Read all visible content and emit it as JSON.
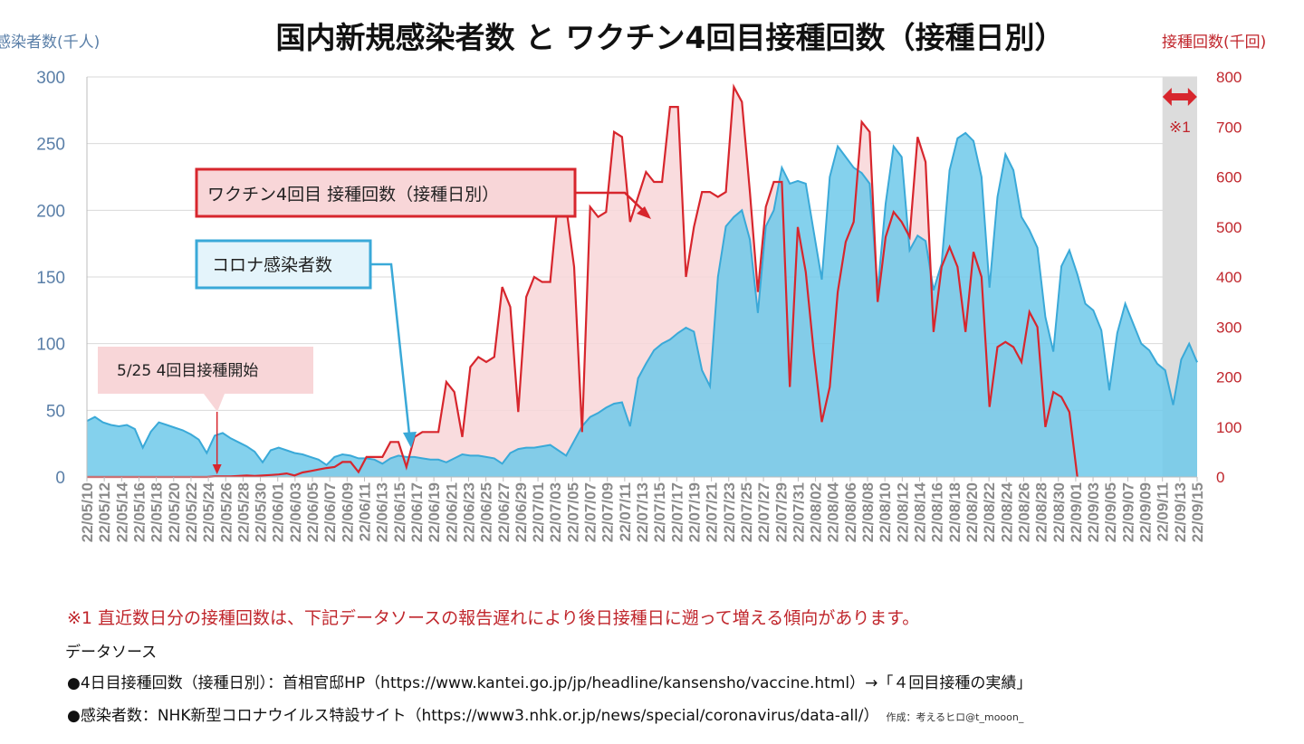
{
  "header": {
    "title": "国内新規感染者数 と ワクチン4回目接種回数（接種日別）",
    "left_axis_unit": "感染者数(千人)",
    "right_axis_unit": "接種回数(千回)"
  },
  "annotations": {
    "vaccine_label": "ワクチン4回目 接種回数（接種日別）",
    "cases_label": "コロナ感染者数",
    "start_label": "5/25 4回目接種開始",
    "recent_marker": "※1"
  },
  "notes": {
    "note1": "※1 直近数日分の接種回数は、下記データソースの報告遅れにより後日接種日に遡って増える傾向があります。",
    "source_heading": "データソース",
    "source1": "●4日目接種回数（接種日別）：首相官邸HP（https://www.kantei.go.jp/jp/headline/kansensho/vaccine.html）→「４回目接種の実績」",
    "source2": "●感染者数：NHK新型コロナウイルス特設サイト（https://www3.nhk.or.jp/news/special/coronavirus/data-all/）",
    "credit": "作成：考えるヒロ@t_mooon_"
  },
  "colors": {
    "cases_fill": "#6ec9ea",
    "cases_line": "#3aa9d8",
    "vaccine_line": "#d7262d",
    "vaccine_fill": "#f8d6d8",
    "left_axis": "#5a7fa8",
    "right_axis": "#c0262c",
    "shade": "#dcdcdc"
  },
  "chart_data": {
    "type": "line",
    "title": "国内新規感染者数 と ワクチン4回目接種回数（接種日別）",
    "x_start": "22/05/10",
    "x_end": "22/09/15",
    "x_tick_labels": [
      "22/05/10",
      "22/05/12",
      "22/05/14",
      "22/05/16",
      "22/05/18",
      "22/05/20",
      "22/05/22",
      "22/05/24",
      "22/05/26",
      "22/05/28",
      "22/05/30",
      "22/06/01",
      "22/06/03",
      "22/06/05",
      "22/06/07",
      "22/06/09",
      "22/06/11",
      "22/06/13",
      "22/06/15",
      "22/06/17",
      "22/06/19",
      "22/06/21",
      "22/06/23",
      "22/06/25",
      "22/06/27",
      "22/06/29",
      "22/07/01",
      "22/07/03",
      "22/07/05",
      "22/07/07",
      "22/07/09",
      "22/07/11",
      "22/07/13",
      "22/07/15",
      "22/07/17",
      "22/07/19",
      "22/07/21",
      "22/07/23",
      "22/07/25",
      "22/07/27",
      "22/07/29",
      "22/07/31",
      "22/08/02",
      "22/08/04",
      "22/08/06",
      "22/08/08",
      "22/08/10",
      "22/08/12",
      "22/08/14",
      "22/08/16",
      "22/08/18",
      "22/08/20",
      "22/08/22",
      "22/08/24",
      "22/08/26",
      "22/08/28",
      "22/08/30",
      "22/09/01",
      "22/09/03",
      "22/09/05",
      "22/09/07",
      "22/09/09",
      "22/09/11",
      "22/09/13",
      "22/09/15"
    ],
    "y_left": {
      "label": "感染者数(千人)",
      "lim": [
        0,
        300
      ],
      "ticks": [
        0,
        50,
        100,
        150,
        200,
        250,
        300
      ]
    },
    "y_right": {
      "label": "接種回数(千回)",
      "lim": [
        0,
        800
      ],
      "ticks": [
        0,
        100,
        200,
        300,
        400,
        500,
        600,
        700,
        800
      ]
    },
    "vaccine_start_date": "22/05/25",
    "shaded_from": "22/09/11",
    "grid": "horizontal",
    "series": [
      {
        "name": "コロナ感染者数",
        "axis": "left",
        "style": "area",
        "values": [
          42,
          45,
          41,
          39,
          38,
          39,
          36,
          22,
          34,
          41,
          39,
          37,
          35,
          32,
          28,
          18,
          31,
          33,
          29,
          26,
          23,
          19,
          11,
          20,
          22,
          20,
          18,
          17,
          15,
          13,
          9,
          15,
          17,
          16,
          14,
          14,
          13,
          10,
          14,
          16,
          15,
          15,
          14,
          13,
          13,
          11,
          14,
          17,
          16,
          16,
          15,
          14,
          10,
          18,
          21,
          22,
          22,
          23,
          24,
          20,
          16,
          27,
          38,
          45,
          48,
          52,
          55,
          56,
          38,
          74,
          85,
          95,
          100,
          103,
          108,
          112,
          109,
          80,
          68,
          150,
          188,
          195,
          200,
          178,
          123,
          188,
          200,
          232,
          220,
          222,
          220,
          184,
          148,
          225,
          248,
          240,
          232,
          228,
          220,
          140,
          205,
          248,
          240,
          170,
          181,
          177,
          140,
          160,
          230,
          254,
          258,
          252,
          225,
          142,
          210,
          242,
          230,
          195,
          185,
          172,
          120,
          94,
          158,
          170,
          152,
          130,
          125,
          110,
          65,
          108,
          130,
          115,
          100,
          95,
          85,
          80,
          54,
          88,
          100,
          86
        ]
      },
      {
        "name": "ワクチン4回目 接種回数（接種日別）",
        "axis": "right",
        "style": "line",
        "values": [
          0,
          0,
          0,
          0,
          0,
          0,
          0,
          0,
          0,
          0,
          0,
          0,
          0,
          0,
          0,
          0,
          1,
          1,
          1,
          2,
          3,
          2,
          3,
          4,
          5,
          7,
          3,
          9,
          12,
          15,
          18,
          20,
          30,
          30,
          10,
          40,
          40,
          40,
          70,
          70,
          20,
          80,
          90,
          90,
          90,
          190,
          170,
          80,
          220,
          240,
          230,
          240,
          380,
          340,
          130,
          360,
          400,
          390,
          390,
          560,
          540,
          420,
          90,
          540,
          520,
          530,
          690,
          680,
          510,
          560,
          610,
          590,
          590,
          740,
          740,
          400,
          500,
          570,
          570,
          560,
          570,
          780,
          750,
          570,
          370,
          540,
          590,
          590,
          180,
          500,
          410,
          250,
          110,
          180,
          370,
          470,
          510,
          710,
          690,
          350,
          480,
          530,
          510,
          480,
          680,
          630,
          290,
          420,
          460,
          420,
          290,
          450,
          400,
          140,
          260,
          270,
          260,
          230,
          330,
          300,
          100,
          170,
          160,
          130,
          0
        ]
      }
    ]
  }
}
